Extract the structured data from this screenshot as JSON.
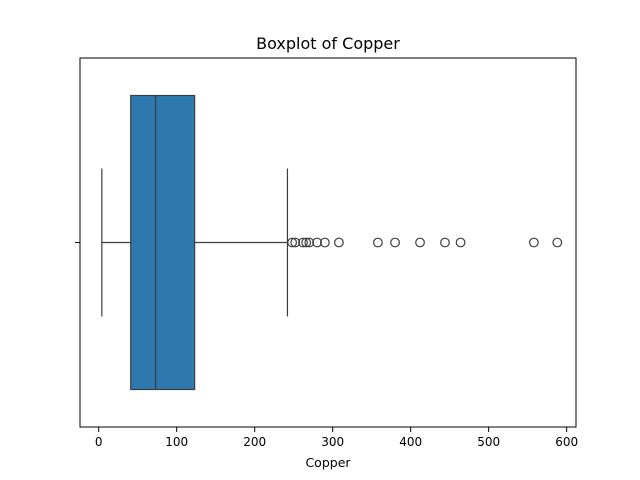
{
  "chart_data": {
    "type": "boxplot",
    "title": "Boxplot of Copper",
    "xlabel": "Copper",
    "ylabel": "",
    "xlim": [
      -24,
      612
    ],
    "x_ticks": [
      0,
      100,
      200,
      300,
      400,
      500,
      600
    ],
    "x_tick_labels": [
      "0",
      "100",
      "200",
      "300",
      "400",
      "500",
      "600"
    ],
    "orientation": "horizontal",
    "grid": false,
    "box": {
      "whisker_low": 4,
      "q1": 41,
      "median": 73,
      "q3": 123,
      "whisker_high": 242
    },
    "outliers": [
      248,
      252,
      262,
      266,
      270,
      280,
      290,
      308,
      358,
      380,
      412,
      444,
      464,
      558,
      588
    ],
    "colors": {
      "box_fill": "#2e78b0",
      "line": "#3d3d3d",
      "frame": "#000000"
    }
  }
}
